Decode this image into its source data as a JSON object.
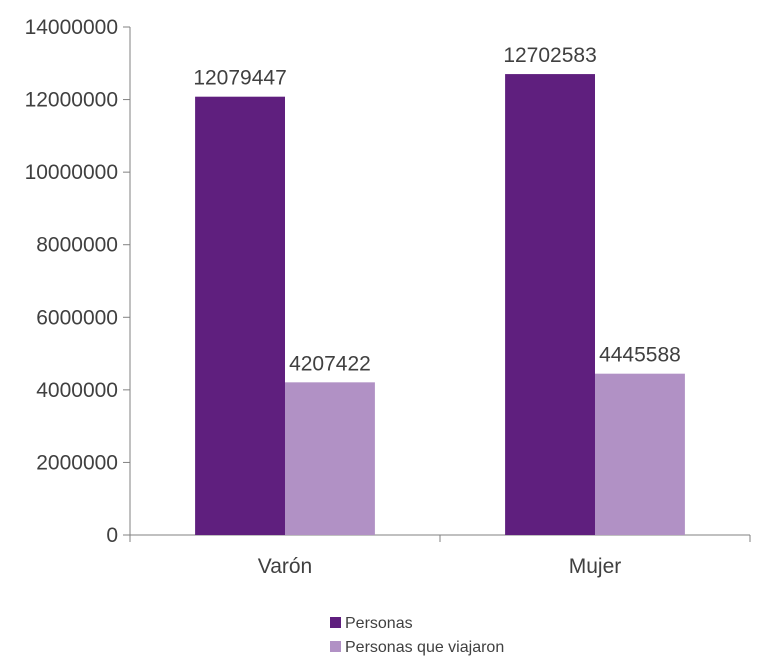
{
  "chart_data": {
    "type": "bar",
    "categories": [
      "Varón",
      "Mujer"
    ],
    "series": [
      {
        "name": "Personas",
        "values": [
          12079447,
          12702583
        ],
        "color": "#5f1f7e"
      },
      {
        "name": "Personas que viajaron",
        "values": [
          4207422,
          4445588
        ],
        "color": "#b191c5"
      }
    ],
    "ylim": [
      0,
      14000000
    ],
    "yticks": [
      0,
      2000000,
      4000000,
      6000000,
      8000000,
      10000000,
      12000000,
      14000000
    ],
    "yticklabels": [
      "0",
      "2000000",
      "4000000",
      "6000000",
      "8000000",
      "10000000",
      "12000000",
      "14000000"
    ],
    "grid": false,
    "legend_position": "bottom",
    "title": "",
    "xlabel": "",
    "ylabel": ""
  }
}
